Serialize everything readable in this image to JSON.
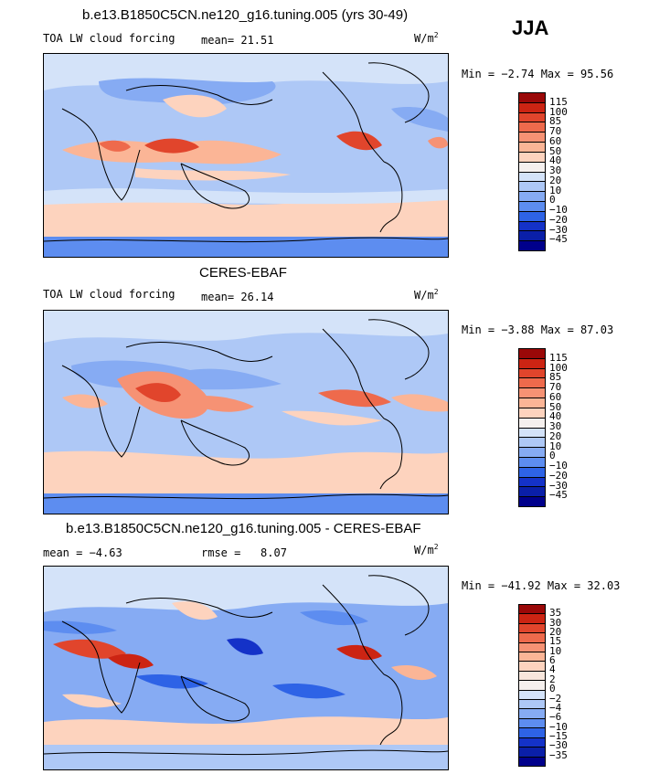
{
  "season": "JJA",
  "colors": {
    "levels_main": [
      "#00008b",
      "#1432c8",
      "#2e63e6",
      "#5d8df0",
      "#86abf3",
      "#aec8f6",
      "#d4e3f9",
      "#f5f0ee",
      "#fdd3be",
      "#fbb596",
      "#f69274",
      "#ee6a4c",
      "#e1452c",
      "#cc2413",
      "#9a0808"
    ],
    "coast": "#000000"
  },
  "panels": [
    {
      "title": "b.e13.B1850C5CN.ne120_g16.tuning.005 (yrs 30-49)",
      "left_label": "TOA LW cloud forcing",
      "stat_label": "mean=",
      "stat_value": "21.51",
      "units": "W/m",
      "units_sup": "2",
      "minmax": "Min =  −2.74 Max =  95.56",
      "colorbar_labels": [
        "115",
        "100",
        "85",
        "70",
        "60",
        "50",
        "40",
        "30",
        "20",
        "10",
        "0",
        "−10",
        "−20",
        "−30",
        "−45"
      ]
    },
    {
      "title": "CERES-EBAF",
      "left_label": "TOA LW cloud forcing",
      "stat_label": "mean=",
      "stat_value": "26.14",
      "units": "W/m",
      "units_sup": "2",
      "minmax": "Min =  −3.88 Max =  87.03",
      "colorbar_labels": [
        "115",
        "100",
        "85",
        "70",
        "60",
        "50",
        "40",
        "30",
        "20",
        "10",
        "0",
        "−10",
        "−20",
        "−30",
        "−45"
      ]
    },
    {
      "title": "b.e13.B1850C5CN.ne120_g16.tuning.005 - CERES-EBAF",
      "left_label": "mean =   −4.63",
      "stat_label": "rmse =",
      "stat_value": "8.07",
      "units": "W/m",
      "units_sup": "2",
      "minmax": "Min = −41.92 Max =  32.03",
      "colorbar_labels": [
        "35",
        "30",
        "20",
        "15",
        "10",
        "6",
        "4",
        "2",
        "0",
        "−2",
        "−4",
        "−6",
        "−10",
        "−15",
        "−30",
        "−35"
      ]
    }
  ]
}
